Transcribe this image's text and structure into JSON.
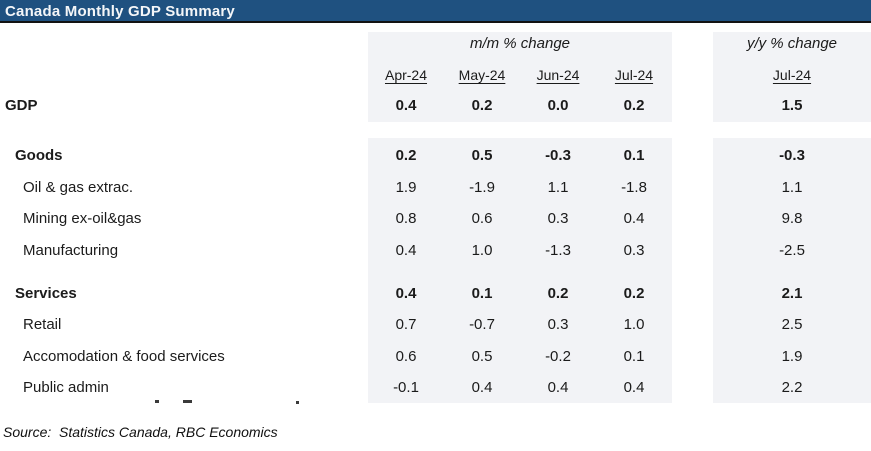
{
  "title": "Canada Monthly GDP Summary",
  "header": {
    "mm_label": "m/m % change",
    "yy_label": "y/y % change",
    "mm_columns": [
      "Apr-24",
      "May-24",
      "Jun-24",
      "Jul-24"
    ],
    "yy_column": "Jul-24"
  },
  "rows": [
    {
      "label": "GDP",
      "values": [
        "0.4",
        "0.2",
        "0.0",
        "0.2"
      ],
      "yy": "1.5"
    },
    {
      "label": "Goods",
      "values": [
        "0.2",
        "0.5",
        "-0.3",
        "0.1"
      ],
      "yy": "-0.3"
    },
    {
      "label": "Oil & gas extrac.",
      "values": [
        "1.9",
        "-1.9",
        "1.1",
        "-1.8"
      ],
      "yy": "1.1"
    },
    {
      "label": "Mining ex-oil&gas",
      "values": [
        "0.8",
        "0.6",
        "0.3",
        "0.4"
      ],
      "yy": "9.8"
    },
    {
      "label": "Manufacturing",
      "values": [
        "0.4",
        "1.0",
        "-1.3",
        "0.3"
      ],
      "yy": "-2.5"
    },
    {
      "label": "Services",
      "values": [
        "0.4",
        "0.1",
        "0.2",
        "0.2"
      ],
      "yy": "2.1"
    },
    {
      "label": "Retail",
      "values": [
        "0.7",
        "-0.7",
        "0.3",
        "1.0"
      ],
      "yy": "2.5"
    },
    {
      "label": "Accomodation & food services",
      "values": [
        "0.6",
        "0.5",
        "-0.2",
        "0.1"
      ],
      "yy": "1.9"
    },
    {
      "label": "Public admin",
      "values": [
        "-0.1",
        "0.4",
        "0.4",
        "0.4"
      ],
      "yy": "2.2"
    }
  ],
  "source": "Source:  Statistics Canada, RBC Economics",
  "colors": {
    "title_bg": "#1F5180",
    "band_bg": "#F2F3F6"
  }
}
